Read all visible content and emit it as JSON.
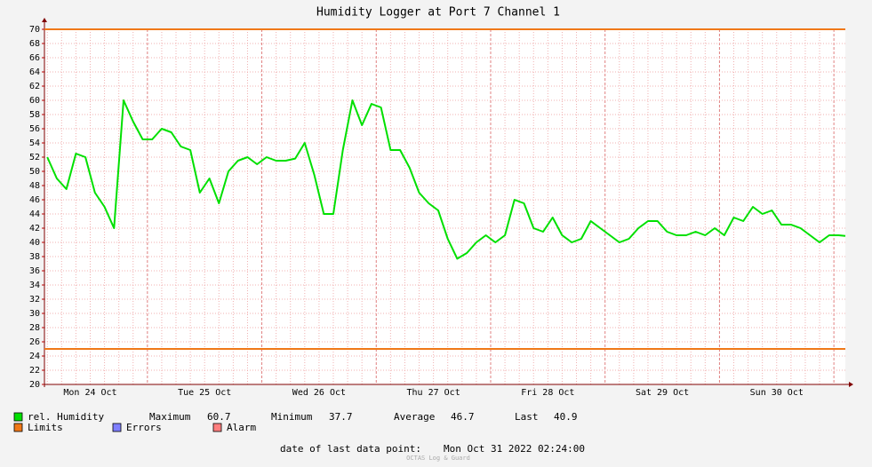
{
  "chart_data": {
    "type": "line",
    "title": "Humidity Logger at Port 7 Channel 1",
    "x": [
      3,
      5,
      7,
      9,
      11,
      13,
      15,
      17,
      19,
      21,
      23,
      25,
      27,
      29,
      31,
      33,
      35,
      37,
      39,
      41,
      43,
      45,
      47,
      49,
      51,
      53,
      55,
      57,
      59,
      61,
      63,
      65,
      67,
      69,
      71,
      73,
      75,
      77,
      79,
      81,
      83,
      85,
      87,
      89,
      91,
      93,
      95,
      97,
      99,
      101,
      103,
      105,
      107,
      109,
      111,
      113,
      115,
      117,
      119,
      121,
      123,
      125,
      127,
      129,
      131,
      133,
      135,
      137,
      139,
      141,
      143,
      145,
      147,
      149,
      151,
      153,
      155,
      157,
      159,
      161,
      163,
      165,
      167,
      169,
      170.4
    ],
    "series": [
      {
        "name": "rel. Humidity",
        "color": "#00e000",
        "values": [
          52,
          49,
          47.5,
          52.5,
          52,
          47,
          45,
          42,
          60,
          57,
          54.5,
          54.5,
          56,
          55.5,
          53.5,
          53,
          47,
          49,
          45.5,
          50,
          51.5,
          52,
          51,
          52,
          51.5,
          51.5,
          51.8,
          54,
          49.5,
          44,
          44,
          53,
          60,
          56.5,
          59.5,
          59,
          53,
          53,
          50.5,
          47,
          45.5,
          44.5,
          40.5,
          37.7,
          38.5,
          40,
          41,
          40,
          41,
          46,
          45.5,
          42,
          41.5,
          43.5,
          41,
          40,
          40.5,
          43,
          42,
          41,
          40,
          40.5,
          42,
          43,
          43,
          41.5,
          41,
          41,
          41.5,
          41,
          42,
          41,
          43.5,
          43,
          45,
          44,
          44.5,
          42.5,
          42.5,
          42,
          41,
          40,
          41,
          41,
          40.9
        ]
      }
    ],
    "limits": {
      "name": "Limits",
      "color": "#f07818",
      "values": [
        70,
        25
      ]
    },
    "legend_extra": [
      {
        "name": "Errors",
        "color": "#7f7fff"
      },
      {
        "name": "Alarm",
        "color": "#ff7f7f"
      }
    ],
    "stats": [
      {
        "label": "Maximum",
        "value": 60.7
      },
      {
        "label": "Minimum",
        "value": 37.7
      },
      {
        "label": "Average",
        "value": 46.7
      },
      {
        "label": "Last",
        "value": 40.9
      }
    ],
    "xlim": [
      2.4,
      170.4
    ],
    "xticks": [
      {
        "value": 12,
        "label": "Mon 24 Oct"
      },
      {
        "value": 36,
        "label": "Tue 25 Oct"
      },
      {
        "value": 60,
        "label": "Wed 26 Oct"
      },
      {
        "value": 84,
        "label": "Thu 27 Oct"
      },
      {
        "value": 108,
        "label": "Fri 28 Oct"
      },
      {
        "value": 132,
        "label": "Sat 29 Oct"
      },
      {
        "value": 156,
        "label": "Sun 30 Oct"
      }
    ],
    "xminor_step": 3,
    "xmajor_step": 24,
    "ylim": [
      20,
      70
    ],
    "yticks": [
      20,
      22,
      24,
      26,
      28,
      30,
      32,
      34,
      36,
      38,
      40,
      42,
      44,
      46,
      48,
      50,
      52,
      54,
      56,
      58,
      60,
      62,
      64,
      66,
      68,
      70
    ],
    "grid": true,
    "footer_label": "date of last data point:",
    "footer_date": "Mon Oct 31 2022 02:24:00",
    "watermark": "OCTAS Log & Guard"
  }
}
